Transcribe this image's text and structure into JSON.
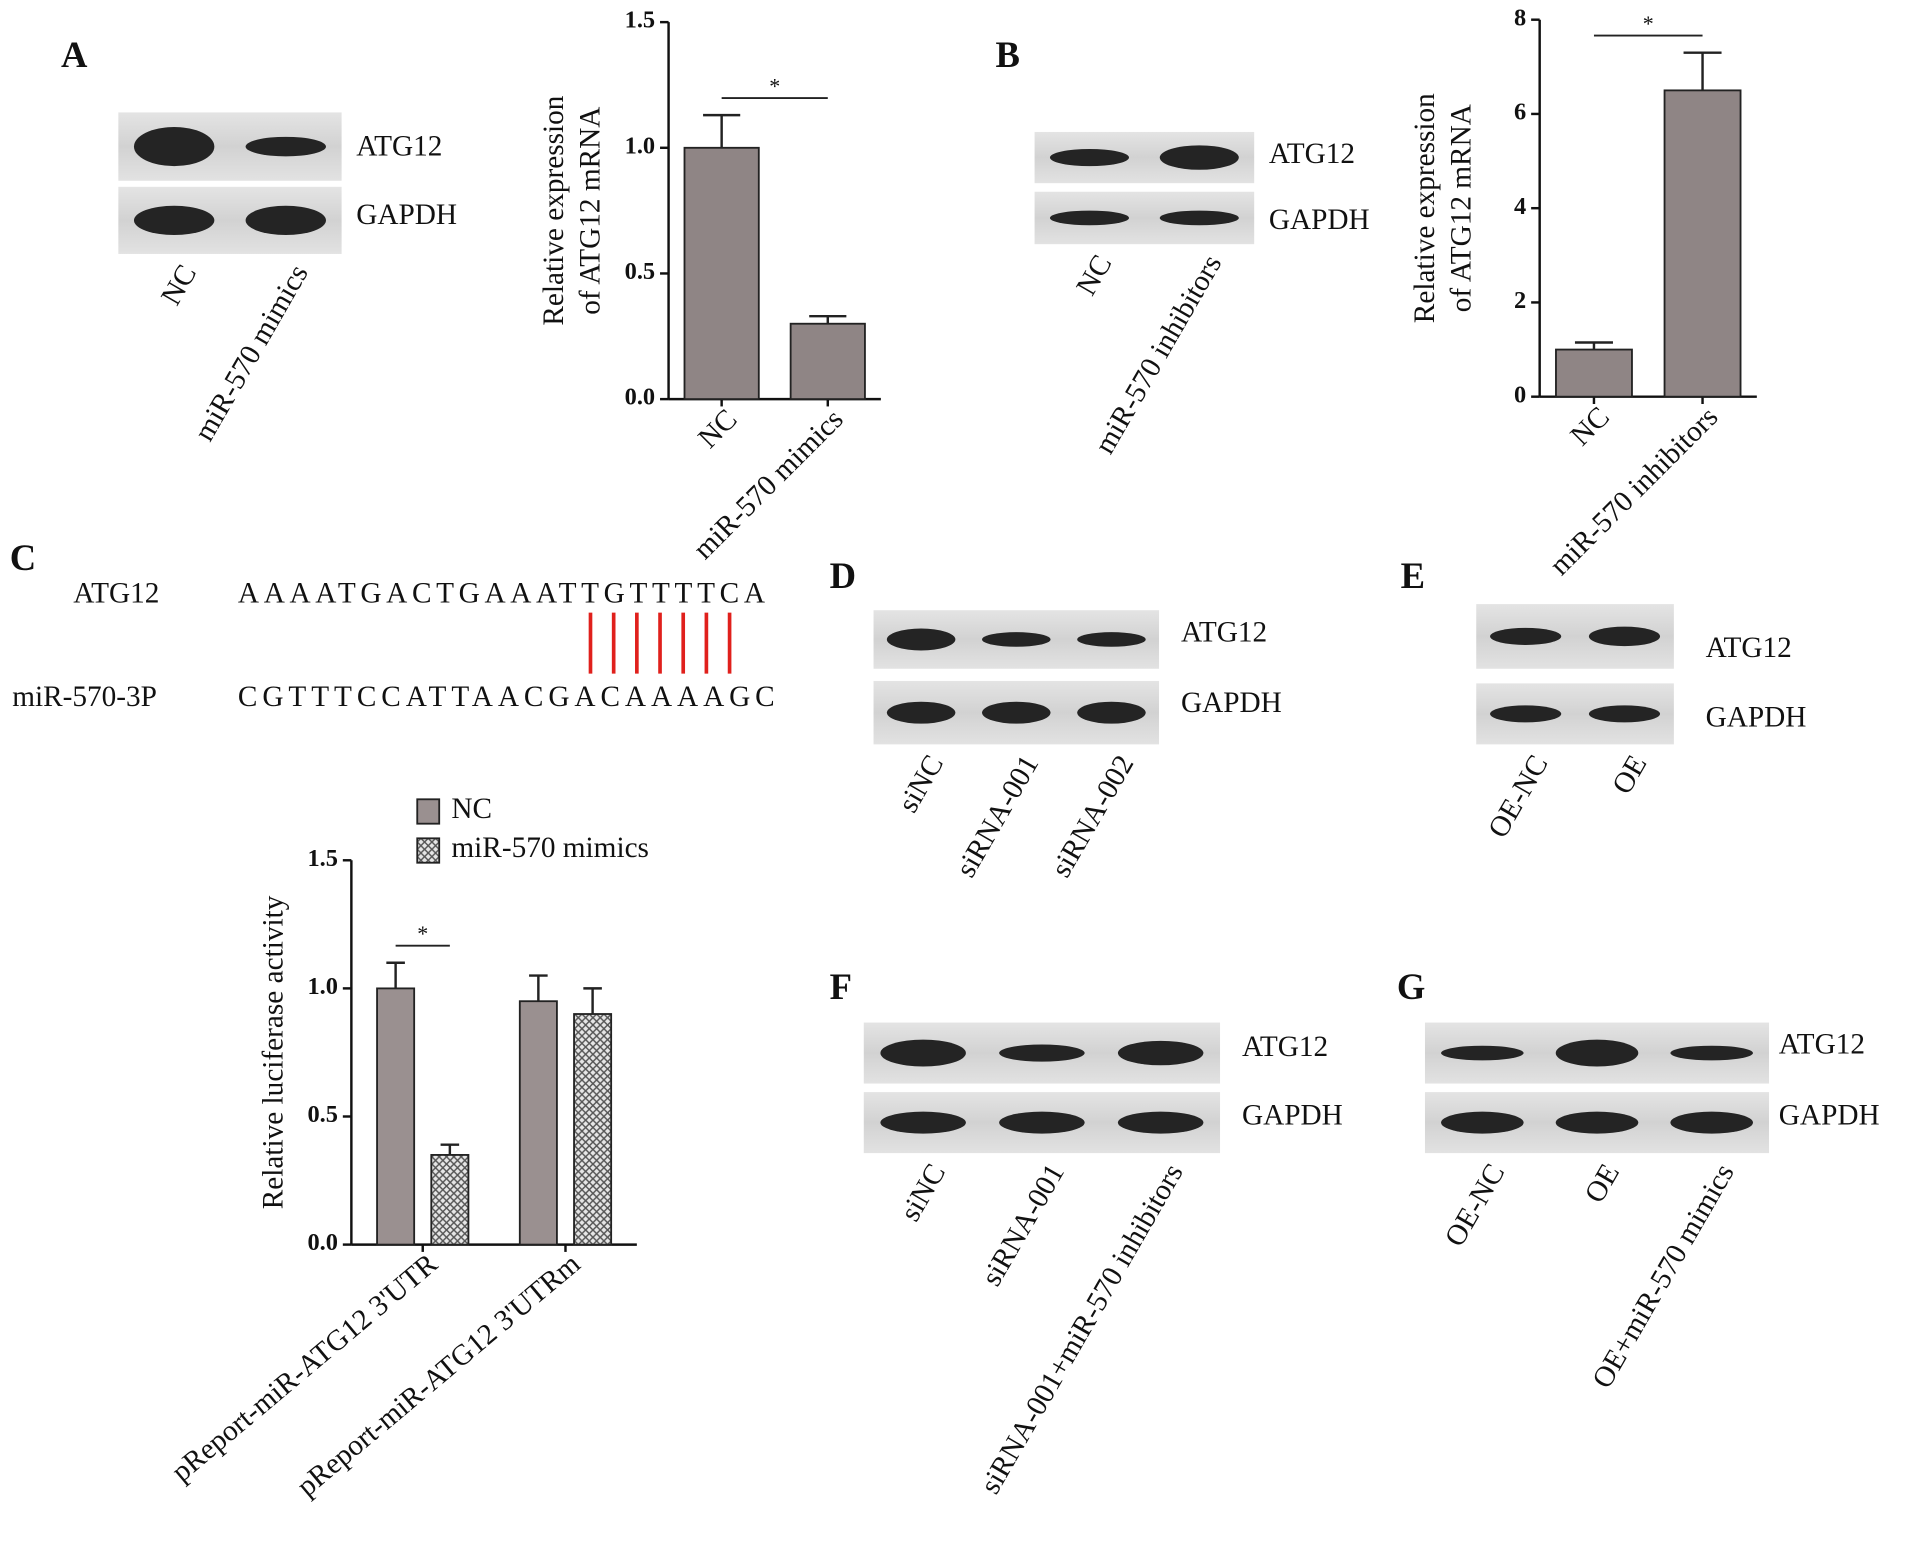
{
  "panel_labels": [
    "A",
    "B",
    "C",
    "D",
    "E",
    "F",
    "G"
  ],
  "chart_data": [
    {
      "type": "bar",
      "ylabel": [
        "Relative expression",
        "of ATG12 mRNA"
      ],
      "categories": [
        "NC",
        "miR-570 mimics"
      ],
      "values": [
        1.0,
        0.3
      ],
      "errors": [
        0.13,
        0.03
      ],
      "color": "#8f8585",
      "annotation": "*",
      "ylim": [
        0,
        1.5
      ],
      "yticks": [
        {
          "value": 0,
          "label": "0.0"
        },
        {
          "value": 0.5,
          "label": "0.5"
        },
        {
          "value": 1,
          "label": "1.0"
        },
        {
          "value": 1.5,
          "label": "1.5"
        }
      ]
    },
    {
      "type": "bar",
      "ylabel": [
        "Relative expression",
        "of ATG12 mRNA"
      ],
      "categories": [
        "NC",
        "miR-570 inhibitors"
      ],
      "values": [
        1.0,
        6.5
      ],
      "errors": [
        0.15,
        0.8
      ],
      "color": "#8f8585",
      "annotation": "*",
      "ylim": [
        0,
        8
      ],
      "yticks": [
        0,
        2,
        4,
        6,
        8
      ]
    },
    {
      "type": "grouped_bar",
      "ylabel": [
        "Relative luciferase activity"
      ],
      "categories": [
        "pReport-miR-ATG12 3'UTR",
        "pReport-miR-ATG12 3'UTRm"
      ],
      "series": [
        {
          "name": "NC",
          "color": "#9a9090",
          "pattern": "solid",
          "values": [
            1.0,
            0.95
          ],
          "errors": [
            0.1,
            0.1
          ]
        },
        {
          "name": "miR-570 mimics",
          "color": "#9a9090",
          "pattern": "crosshatch",
          "values": [
            0.35,
            0.9
          ],
          "errors": [
            0.04,
            0.1
          ]
        }
      ],
      "annotation": "*",
      "ylim": [
        0,
        1.5
      ],
      "yticks": [
        {
          "value": 0,
          "label": "0.0"
        },
        {
          "value": 0.5,
          "label": "0.5"
        },
        {
          "value": 1,
          "label": "1.0"
        },
        {
          "value": 1.5,
          "label": "1.5"
        }
      ]
    }
  ],
  "sequence": {
    "rows": [
      {
        "name": "ATG12",
        "seq": "AAAATGACTGAAATTGTTTTCA"
      },
      {
        "name": "miR-570-3P",
        "seq": "CGTTTCCATTAACGACAAAAGC"
      }
    ]
  },
  "blots": [
    {
      "rows": [
        "ATG12",
        "GAPDH"
      ],
      "lanes": [
        "NC",
        "miR-570 mimics"
      ]
    },
    {
      "rows": [
        "ATG12",
        "GAPDH"
      ],
      "lanes": [
        "NC",
        "miR-570 inhibitors"
      ]
    },
    {
      "rows": [
        "ATG12",
        "GAPDH"
      ],
      "lanes": [
        "siNC",
        "siRNA-001",
        "siRNA-002"
      ]
    },
    {
      "rows": [
        "ATG12",
        "GAPDH"
      ],
      "lanes": [
        "OE-NC",
        "OE"
      ]
    },
    {
      "rows": [
        "ATG12",
        "GAPDH"
      ],
      "lanes": [
        "siNC",
        "siRNA-001",
        "siRNA-001+miR-570 inhibitors"
      ]
    },
    {
      "rows": [
        "ATG12",
        "GAPDH"
      ],
      "lanes": [
        "OE-NC",
        "OE",
        "OE+miR-570 mimics"
      ]
    }
  ]
}
